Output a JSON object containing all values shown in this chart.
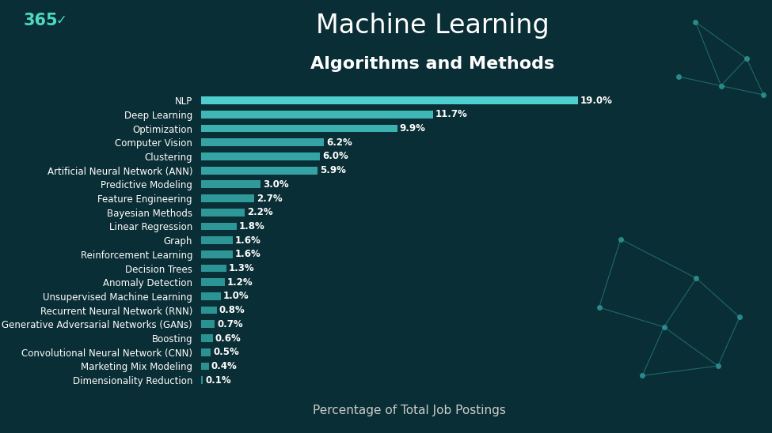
{
  "title_line1": "Machine Learning",
  "title_line2": "Algorithms and Methods",
  "xlabel": "Percentage of Total Job Postings",
  "categories": [
    "NLP",
    "Deep Learning",
    "Optimization",
    "Computer Vision",
    "Clustering",
    "Artificial Neural Network (ANN)",
    "Predictive Modeling",
    "Feature Engineering",
    "Bayesian Methods",
    "Linear Regression",
    "Graph",
    "Reinforcement Learning",
    "Decision Trees",
    "Anomaly Detection",
    "Unsupervised Machine Learning",
    "Recurrent Neural Network (RNN)",
    "Generative Adversarial Networks (GANs)",
    "Boosting",
    "Convolutional Neural Network (CNN)",
    "Marketing Mix Modeling",
    "Dimensionality Reduction"
  ],
  "values": [
    19.0,
    11.7,
    9.9,
    6.2,
    6.0,
    5.9,
    3.0,
    2.7,
    2.2,
    1.8,
    1.6,
    1.6,
    1.3,
    1.2,
    1.0,
    0.8,
    0.7,
    0.6,
    0.5,
    0.4,
    0.1
  ],
  "labels": [
    "19.0%",
    "11.7%",
    "9.9%",
    "6.2%",
    "6.0%",
    "5.9%",
    "3.0%",
    "2.7%",
    "2.2%",
    "1.8%",
    "1.6%",
    "1.6%",
    "1.3%",
    "1.2%",
    "1.0%",
    "0.8%",
    "0.7%",
    "0.6%",
    "0.5%",
    "0.4%",
    "0.1%"
  ],
  "bar_color_top": "#4ecece",
  "bar_color_bottom": "#2a9090",
  "background_color": "#0a2e35",
  "text_color": "#ffffff",
  "title_color": "#ffffff",
  "subtitle_color": "#ffffff",
  "xlabel_color": "#cccccc",
  "bar_label_color": "#ffffff",
  "logo_color": "#4dd9c0",
  "xlim": [
    0,
    21
  ],
  "title_fontsize": 24,
  "subtitle_fontsize": 16,
  "category_fontsize": 8.5,
  "label_fontsize": 8.5,
  "xlabel_fontsize": 11
}
